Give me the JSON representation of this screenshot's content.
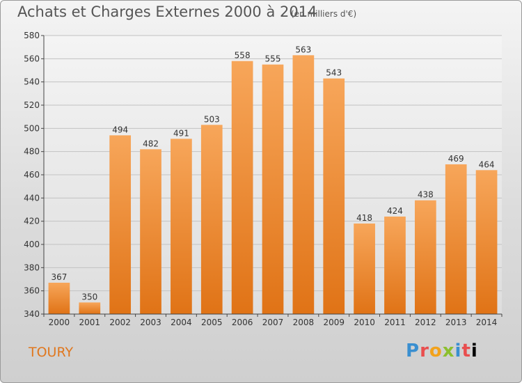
{
  "header": {
    "title": "Achats et Charges Externes 2000 à 2014",
    "subtitle": "(en milliers d'€)"
  },
  "footer": {
    "town": "TOURY",
    "logo": [
      "P",
      "r",
      "o",
      "x",
      "i",
      "t",
      "i"
    ]
  },
  "colors": {
    "bar_top": "#f7a65a",
    "bar_bottom": "#e07316",
    "town_text": "#e0771e"
  },
  "chart_data": {
    "type": "bar",
    "title": "Achats et Charges Externes 2000 à 2014",
    "subtitle": "(en milliers d'€)",
    "xlabel": "",
    "ylabel": "",
    "categories": [
      "2000",
      "2001",
      "2002",
      "2003",
      "2004",
      "2005",
      "2006",
      "2007",
      "2008",
      "2009",
      "2010",
      "2011",
      "2012",
      "2013",
      "2014"
    ],
    "values": [
      367,
      350,
      494,
      482,
      491,
      503,
      558,
      555,
      563,
      543,
      418,
      424,
      438,
      469,
      464
    ],
    "ylim": [
      340,
      580
    ],
    "yticks": [
      340,
      360,
      380,
      400,
      420,
      440,
      460,
      480,
      500,
      520,
      540,
      560,
      580
    ],
    "grid": true,
    "data_labels": true,
    "legend": "none"
  }
}
